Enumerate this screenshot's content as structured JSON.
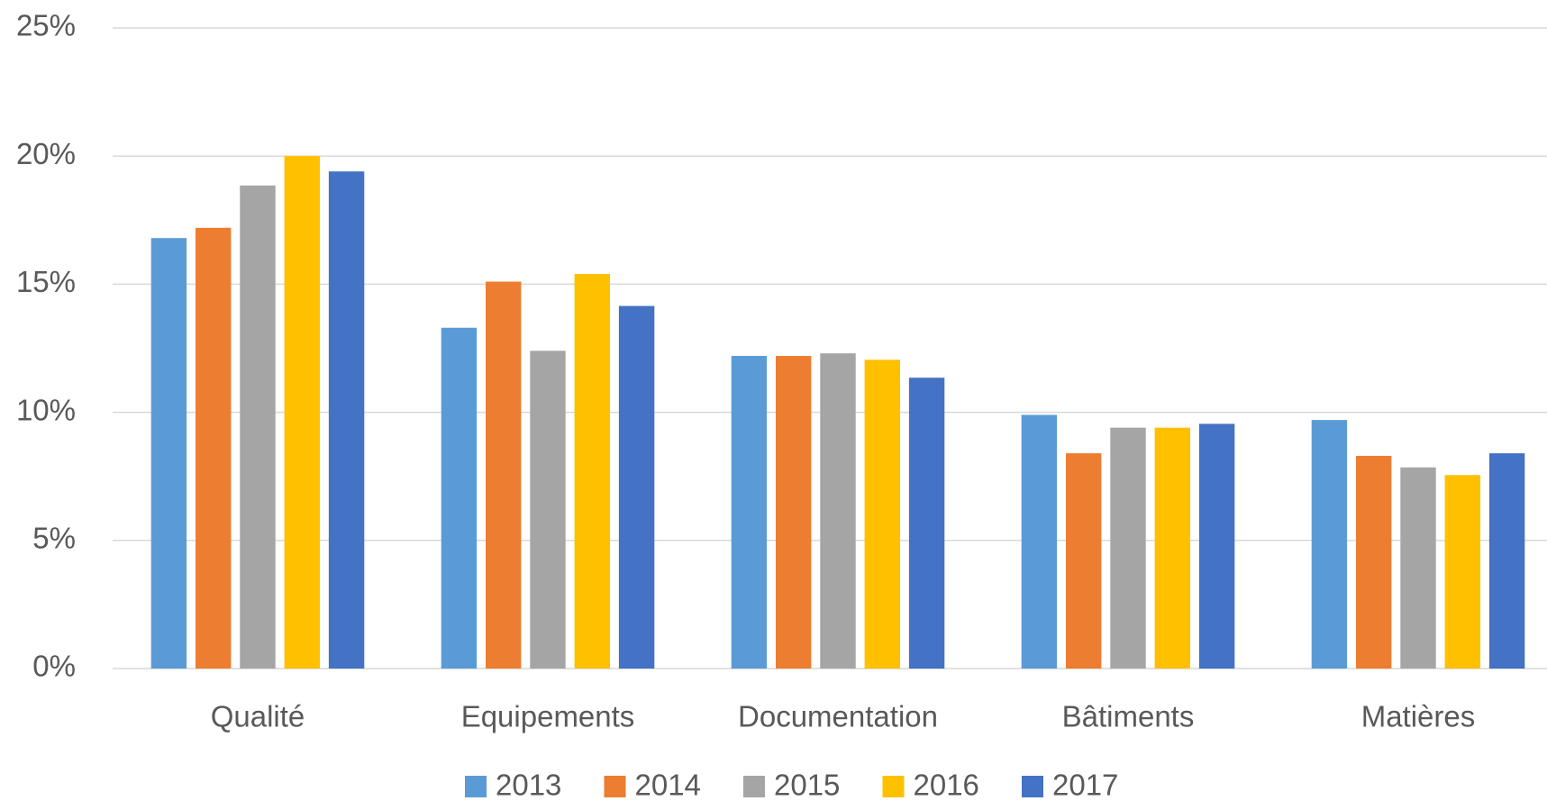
{
  "chart_data": {
    "type": "bar",
    "categories": [
      "Qualité",
      "Equipements",
      "Documentation",
      "Bâtiments",
      "Matières"
    ],
    "series": [
      {
        "name": "2013",
        "color": "#5b9bd5",
        "values": [
          16.8,
          13.3,
          12.2,
          9.9,
          9.7
        ]
      },
      {
        "name": "2014",
        "color": "#ed7d31",
        "values": [
          17.2,
          15.1,
          12.2,
          8.4,
          8.3
        ]
      },
      {
        "name": "2015",
        "color": "#a5a5a5",
        "values": [
          18.85,
          12.4,
          12.3,
          9.4,
          7.85
        ]
      },
      {
        "name": "2016",
        "color": "#ffc000",
        "values": [
          20.0,
          15.4,
          12.05,
          9.4,
          7.55
        ]
      },
      {
        "name": "2017",
        "color": "#4472c4",
        "values": [
          19.4,
          14.15,
          11.35,
          9.55,
          8.4
        ]
      }
    ],
    "ylim": [
      0,
      25
    ],
    "yticks": [
      {
        "value": 0,
        "label": "0%"
      },
      {
        "value": 5,
        "label": "5%"
      },
      {
        "value": 10,
        "label": "10%"
      },
      {
        "value": 15,
        "label": "15%"
      },
      {
        "value": 20,
        "label": "20%"
      },
      {
        "value": 25,
        "label": "25%"
      }
    ],
    "grid": true,
    "legend": "bottom"
  }
}
